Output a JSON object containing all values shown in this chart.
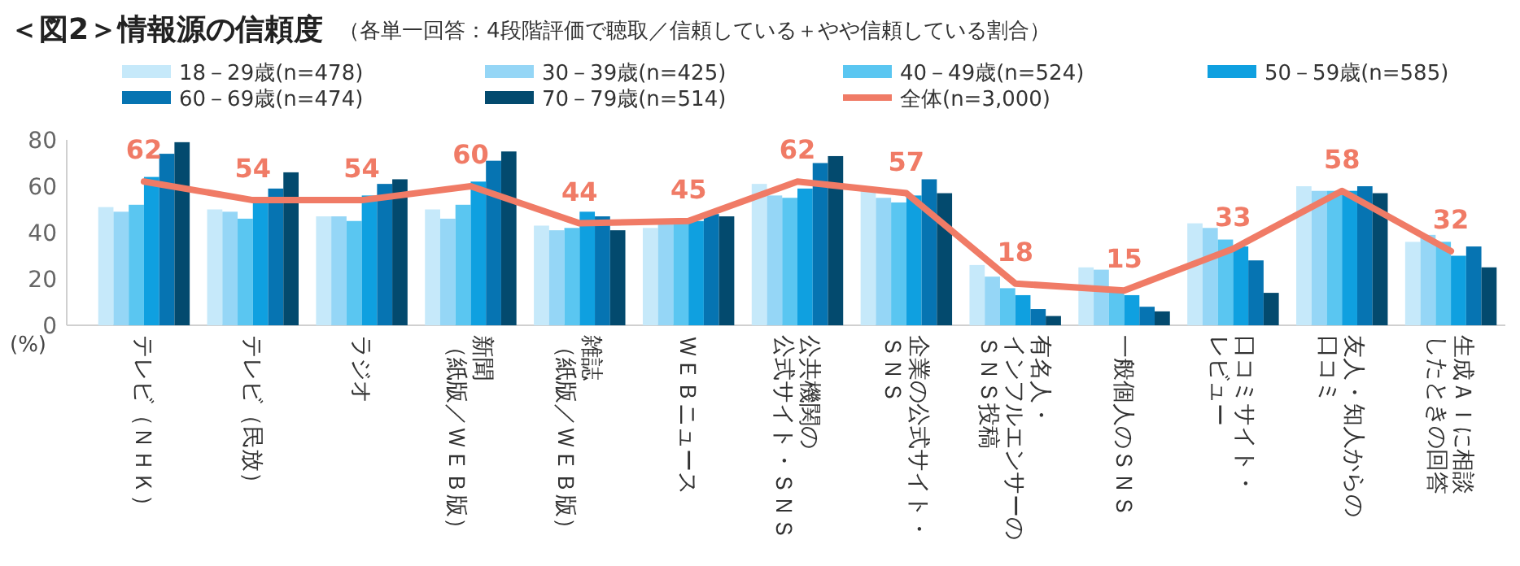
{
  "chart_data": {
    "type": "bar",
    "title": "＜図2＞情報源の信頼度",
    "subtitle": "（各単一回答：4段階評価で聴取／信頼している＋やや信頼している割合）",
    "ylabel": "(%)",
    "categories": [
      "テレビ（ＮＨＫ）",
      "テレビ（民放）",
      "ラジオ",
      "新聞（紙版／ＷＥＢ版）",
      "雑誌（紙版／ＷＥＢ版）",
      "ＷＥＢニュース",
      "公共機関の公式サイト・ＳＮＳ",
      "企業の公式サイト・ＳＮＳ",
      "有名人・インフルエンサーのＳＮＳ投稿",
      "一般個人のＳＮＳ",
      "口コミサイト・レビュー",
      "友人・知人からの口コミ",
      "生成ＡＩに相談したときの回答"
    ],
    "series": [
      {
        "name": "18－29歳(n=478)",
        "color": "#c6e9fa",
        "values": [
          51,
          50,
          47,
          50,
          43,
          42,
          61,
          59,
          26,
          25,
          44,
          60,
          36
        ]
      },
      {
        "name": "30－39歳(n=425)",
        "color": "#95d6f6",
        "values": [
          49,
          49,
          47,
          46,
          41,
          44,
          56,
          55,
          21,
          24,
          42,
          58,
          39
        ]
      },
      {
        "name": "40－49歳(n=524)",
        "color": "#5ac6f1",
        "values": [
          52,
          46,
          45,
          52,
          42,
          44,
          55,
          53,
          16,
          15,
          37,
          58,
          36
        ]
      },
      {
        "name": "50－59歳(n=585)",
        "color": "#0fa0e0",
        "values": [
          64,
          55,
          56,
          62,
          49,
          45,
          59,
          56,
          13,
          13,
          34,
          58,
          30
        ]
      },
      {
        "name": "60－69歳(n=474)",
        "color": "#0674b2",
        "values": [
          74,
          59,
          61,
          71,
          47,
          48,
          70,
          63,
          7,
          8,
          28,
          60,
          34
        ]
      },
      {
        "name": "70－79歳(n=514)",
        "color": "#034a6e",
        "values": [
          79,
          66,
          63,
          75,
          41,
          47,
          73,
          57,
          4,
          6,
          14,
          57,
          25
        ]
      },
      {
        "name": "全体(n=3,000)",
        "type": "line",
        "color": "#f07b66",
        "values": [
          62,
          54,
          54,
          60,
          44,
          45,
          62,
          57,
          18,
          15,
          33,
          58,
          32
        ],
        "value_labels": [
          "62",
          "54",
          "54",
          "60",
          "44",
          "45",
          "62",
          "57",
          "18",
          "15",
          "33",
          "58",
          "32"
        ]
      }
    ],
    "ylim": [
      0,
      80
    ],
    "yticks": [
      0,
      20,
      40,
      60,
      80
    ],
    "legend": "top"
  }
}
